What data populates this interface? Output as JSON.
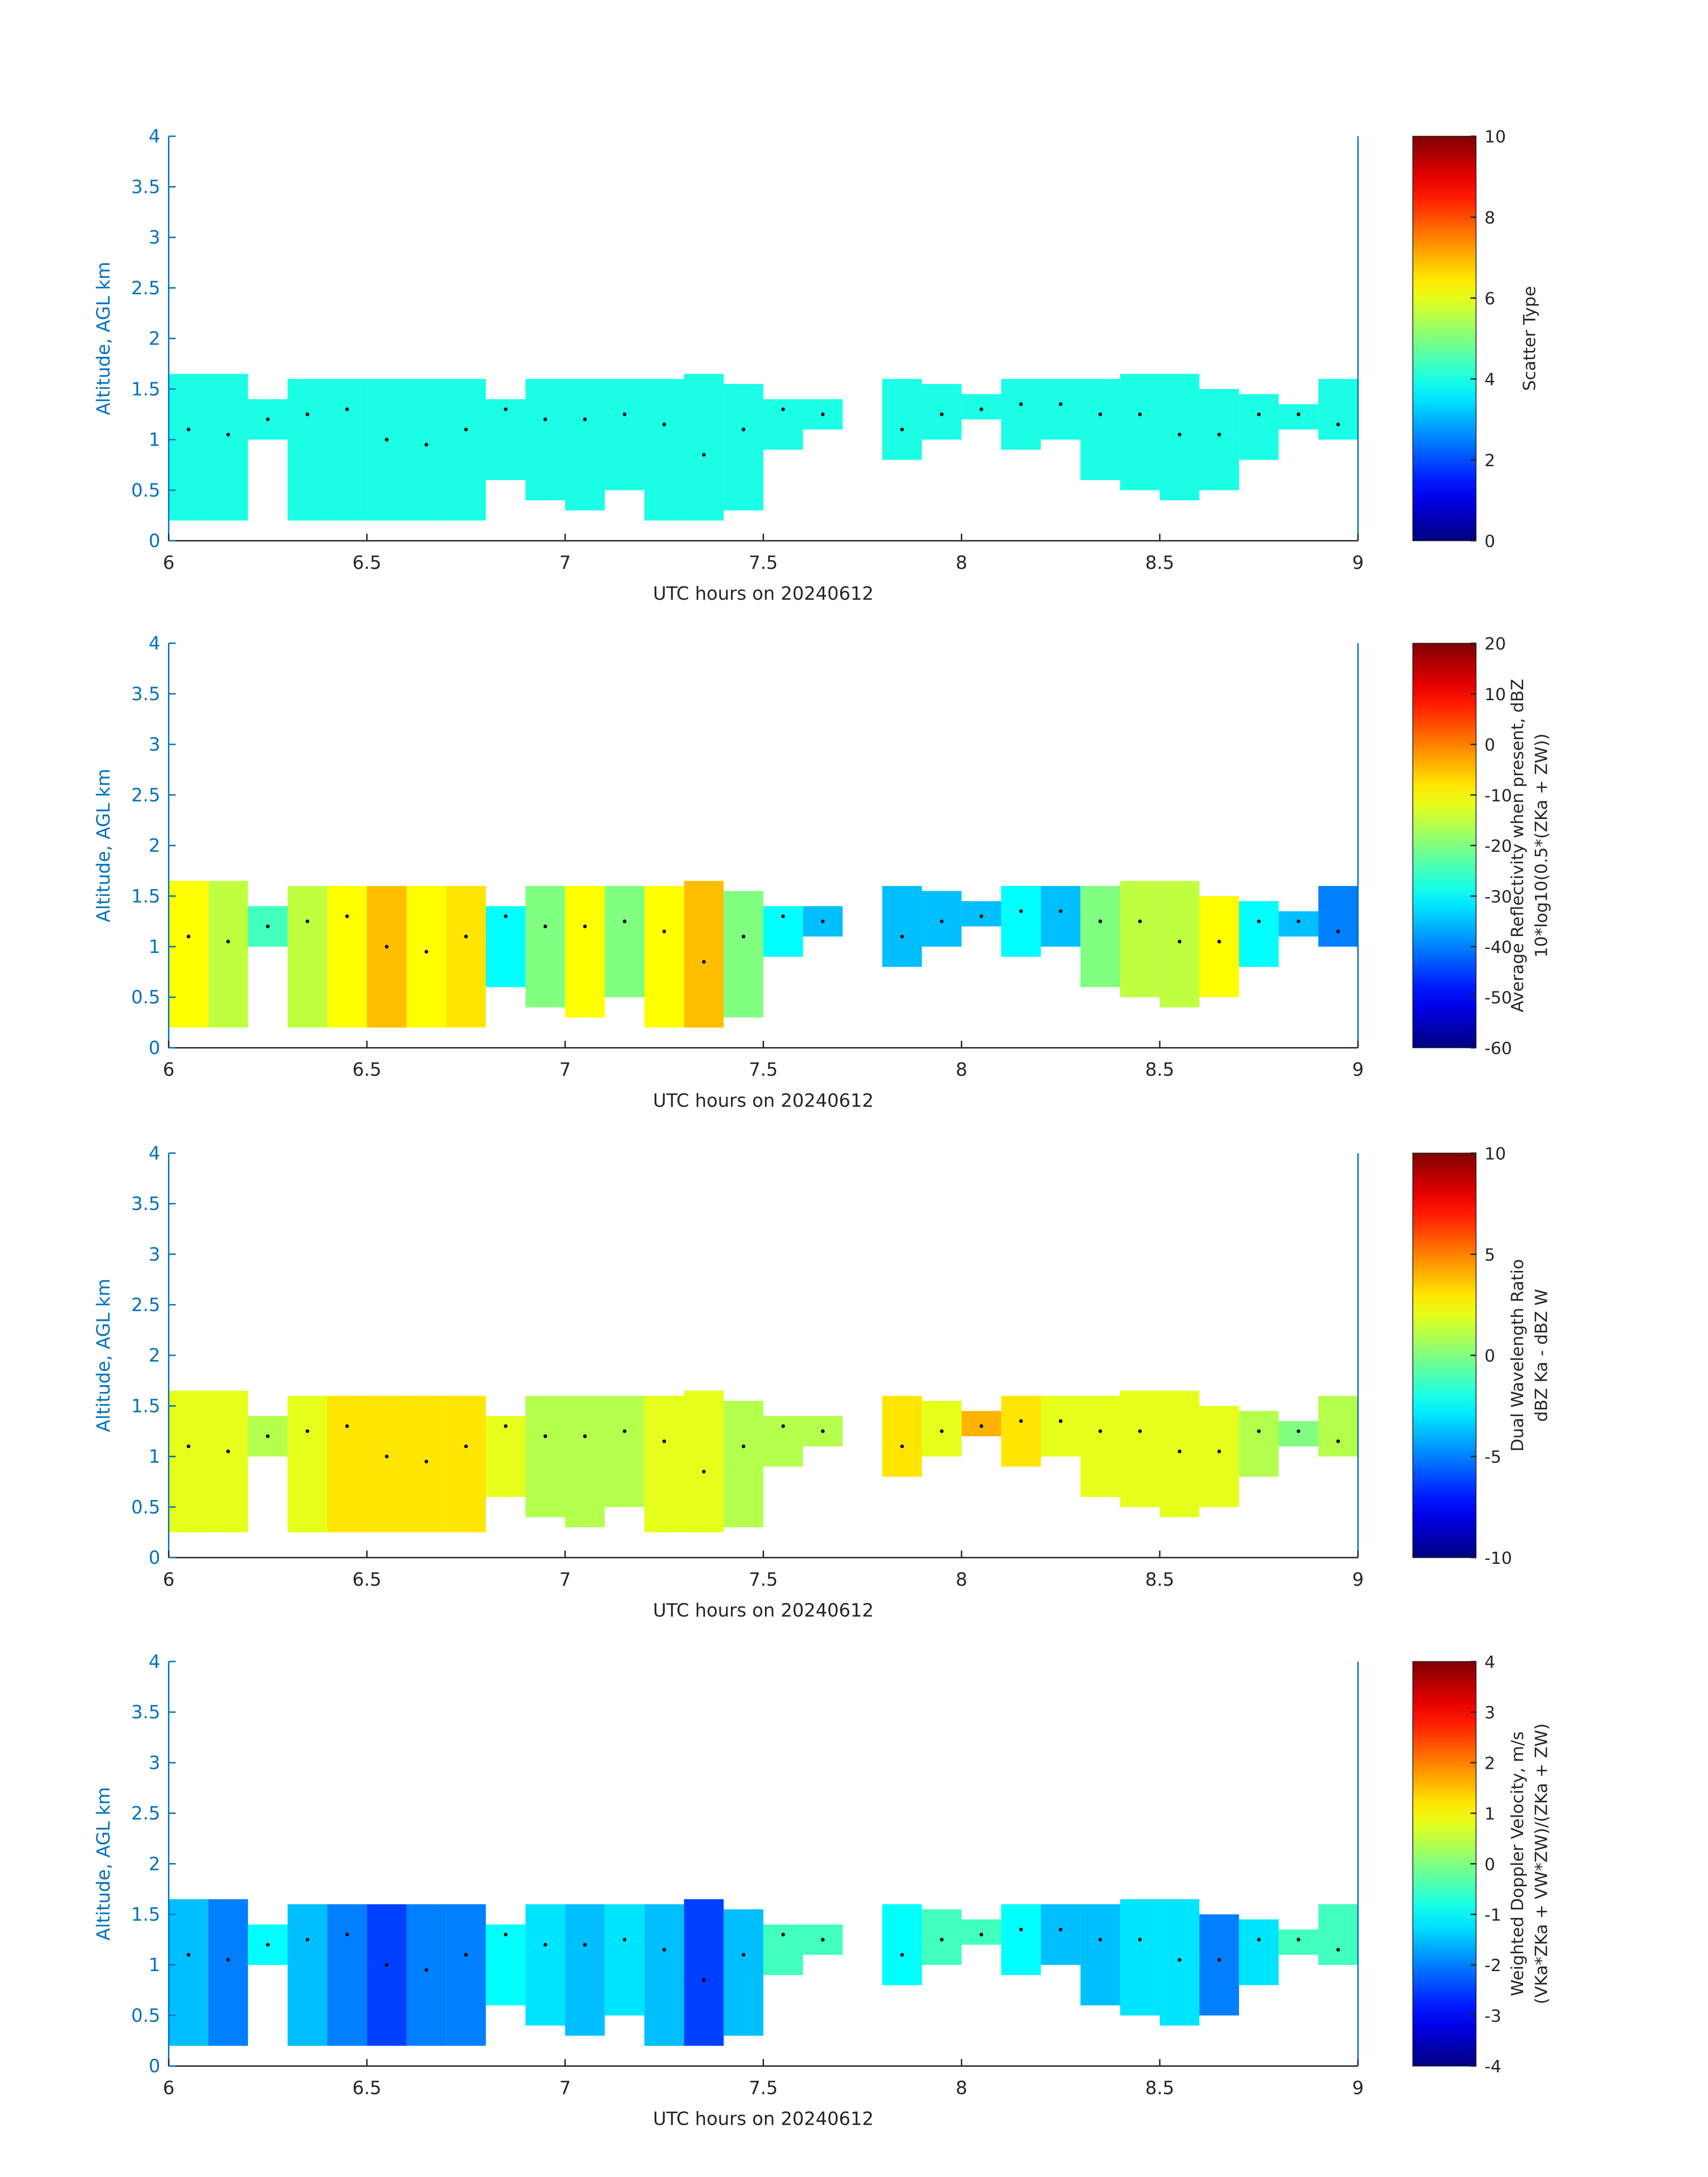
{
  "chart_data": [
    {
      "type": "heatmap",
      "xlabel": "UTC hours on 20240612",
      "ylabel": "Altitude, AGL km",
      "xlim": [
        6,
        9
      ],
      "xticks": [
        6,
        6.5,
        7,
        7.5,
        8,
        8.5,
        9
      ],
      "ylim": [
        0,
        4
      ],
      "yticks": [
        0,
        0.5,
        1,
        1.5,
        2,
        2.5,
        3,
        3.5,
        4
      ],
      "x": [
        6.05,
        6.15,
        6.25,
        6.35,
        6.45,
        6.55,
        6.65,
        6.75,
        6.85,
        6.95,
        7.05,
        7.15,
        7.25,
        7.35,
        7.45,
        7.55,
        7.65,
        7.75,
        7.85,
        7.95,
        8.05,
        8.15,
        8.25,
        8.35,
        8.45,
        8.55,
        8.65,
        8.75,
        8.85,
        8.95
      ],
      "top": [
        1.65,
        1.65,
        1.4,
        1.6,
        1.6,
        1.6,
        1.6,
        1.6,
        1.4,
        1.6,
        1.6,
        1.6,
        1.6,
        1.65,
        1.55,
        1.4,
        1.4,
        null,
        1.6,
        1.55,
        1.45,
        1.6,
        1.6,
        1.6,
        1.65,
        1.65,
        1.5,
        1.45,
        1.35,
        1.6
      ],
      "base": [
        0.2,
        0.2,
        1.0,
        0.2,
        0.2,
        0.2,
        0.2,
        0.2,
        0.6,
        0.4,
        0.3,
        0.5,
        0.2,
        0.2,
        0.3,
        0.9,
        1.1,
        null,
        0.8,
        1.0,
        1.2,
        0.9,
        1.0,
        0.6,
        0.5,
        0.4,
        0.5,
        0.8,
        1.1,
        1.0
      ],
      "values": [
        4,
        4,
        4,
        4,
        4,
        4,
        4,
        4,
        4,
        4,
        4,
        4,
        4,
        4,
        4,
        4,
        4,
        null,
        4,
        4,
        4,
        4,
        4,
        4,
        4,
        4,
        4,
        4,
        4,
        4
      ],
      "dots": [
        1.1,
        1.05,
        1.2,
        1.25,
        1.3,
        1.0,
        0.95,
        1.1,
        1.3,
        1.2,
        1.2,
        1.25,
        1.15,
        0.85,
        1.1,
        1.3,
        1.25,
        null,
        1.1,
        1.25,
        1.3,
        1.35,
        1.35,
        1.25,
        1.25,
        1.05,
        1.05,
        1.25,
        1.25,
        1.15
      ],
      "colorbar": {
        "label": [
          "Scatter Type"
        ],
        "clim": [
          0,
          10
        ],
        "ticks": [
          0,
          2,
          4,
          6,
          8,
          10
        ]
      }
    },
    {
      "type": "heatmap",
      "xlabel": "UTC hours on 20240612",
      "ylabel": "Altitude, AGL km",
      "xlim": [
        6,
        9
      ],
      "xticks": [
        6,
        6.5,
        7,
        7.5,
        8,
        8.5,
        9
      ],
      "ylim": [
        0,
        4
      ],
      "yticks": [
        0,
        0.5,
        1,
        1.5,
        2,
        2.5,
        3,
        3.5,
        4
      ],
      "x": [
        6.05,
        6.15,
        6.25,
        6.35,
        6.45,
        6.55,
        6.65,
        6.75,
        6.85,
        6.95,
        7.05,
        7.15,
        7.25,
        7.35,
        7.45,
        7.55,
        7.65,
        7.75,
        7.85,
        7.95,
        8.05,
        8.15,
        8.25,
        8.35,
        8.45,
        8.55,
        8.65,
        8.75,
        8.85,
        8.95
      ],
      "top": [
        1.65,
        1.65,
        1.4,
        1.6,
        1.6,
        1.6,
        1.6,
        1.6,
        1.4,
        1.6,
        1.6,
        1.6,
        1.6,
        1.65,
        1.55,
        1.4,
        1.4,
        null,
        1.6,
        1.55,
        1.45,
        1.6,
        1.6,
        1.6,
        1.65,
        1.65,
        1.5,
        1.45,
        1.35,
        1.6
      ],
      "base": [
        0.2,
        0.2,
        1.0,
        0.2,
        0.2,
        0.2,
        0.2,
        0.2,
        0.6,
        0.4,
        0.3,
        0.5,
        0.2,
        0.2,
        0.3,
        0.9,
        1.1,
        null,
        0.8,
        1.0,
        1.2,
        0.9,
        1.0,
        0.6,
        0.5,
        0.4,
        0.5,
        0.8,
        1.1,
        1.0
      ],
      "values": [
        -10,
        -15,
        -25,
        -15,
        -10,
        -5,
        -10,
        -8,
        -30,
        -20,
        -10,
        -20,
        -10,
        -5,
        -20,
        -30,
        -35,
        null,
        -35,
        -35,
        -35,
        -30,
        -35,
        -20,
        -15,
        -15,
        -10,
        -30,
        -35,
        -40
      ],
      "dots": [
        1.1,
        1.05,
        1.2,
        1.25,
        1.3,
        1.0,
        0.95,
        1.1,
        1.3,
        1.2,
        1.2,
        1.25,
        1.15,
        0.85,
        1.1,
        1.3,
        1.25,
        null,
        1.1,
        1.25,
        1.3,
        1.35,
        1.35,
        1.25,
        1.25,
        1.05,
        1.05,
        1.25,
        1.25,
        1.15
      ],
      "colorbar": {
        "label": [
          "Average Reflectivity when present, dBZ",
          "10*log10(0.5*(ZKa + ZW))"
        ],
        "clim": [
          -60,
          20
        ],
        "ticks": [
          -60,
          -50,
          -40,
          -30,
          -20,
          -10,
          0,
          10,
          20
        ]
      }
    },
    {
      "type": "heatmap",
      "xlabel": "UTC hours on 20240612",
      "ylabel": "Altitude, AGL km",
      "xlim": [
        6,
        9
      ],
      "xticks": [
        6,
        6.5,
        7,
        7.5,
        8,
        8.5,
        9
      ],
      "ylim": [
        0,
        4
      ],
      "yticks": [
        0,
        0.5,
        1,
        1.5,
        2,
        2.5,
        3,
        3.5,
        4
      ],
      "x": [
        6.05,
        6.15,
        6.25,
        6.35,
        6.45,
        6.55,
        6.65,
        6.75,
        6.85,
        6.95,
        7.05,
        7.15,
        7.25,
        7.35,
        7.45,
        7.55,
        7.65,
        7.75,
        7.85,
        7.95,
        8.05,
        8.15,
        8.25,
        8.35,
        8.45,
        8.55,
        8.65,
        8.75,
        8.85,
        8.95
      ],
      "top": [
        1.65,
        1.65,
        1.4,
        1.6,
        1.6,
        1.6,
        1.6,
        1.6,
        1.4,
        1.6,
        1.6,
        1.6,
        1.6,
        1.65,
        1.55,
        1.4,
        1.4,
        null,
        1.6,
        1.55,
        1.45,
        1.6,
        1.6,
        1.6,
        1.65,
        1.65,
        1.5,
        1.45,
        1.35,
        1.6
      ],
      "base": [
        0.25,
        0.25,
        1.0,
        0.25,
        0.25,
        0.25,
        0.25,
        0.25,
        0.6,
        0.4,
        0.3,
        0.5,
        0.25,
        0.25,
        0.3,
        0.9,
        1.1,
        null,
        0.8,
        1.0,
        1.2,
        0.9,
        1.0,
        0.6,
        0.5,
        0.4,
        0.5,
        0.8,
        1.1,
        1.0
      ],
      "values": [
        2,
        2,
        1,
        2,
        3,
        3,
        3,
        3,
        2,
        1,
        1,
        1,
        2,
        2,
        1,
        1,
        1,
        null,
        3,
        2,
        4,
        3,
        2,
        2,
        2,
        2,
        2,
        1,
        0,
        1
      ],
      "dots": [
        1.1,
        1.05,
        1.2,
        1.25,
        1.3,
        1.0,
        0.95,
        1.1,
        1.3,
        1.2,
        1.2,
        1.25,
        1.15,
        0.85,
        1.1,
        1.3,
        1.25,
        null,
        1.1,
        1.25,
        1.3,
        1.35,
        1.35,
        1.25,
        1.25,
        1.05,
        1.05,
        1.25,
        1.25,
        1.15
      ],
      "colorbar": {
        "label": [
          "Dual Wavelength Ratio",
          "dBZ Ka - dBZ W"
        ],
        "clim": [
          -10,
          10
        ],
        "ticks": [
          -10,
          -5,
          0,
          5,
          10
        ]
      }
    },
    {
      "type": "heatmap",
      "xlabel": "UTC hours on 20240612",
      "ylabel": "Altitude, AGL km",
      "xlim": [
        6,
        9
      ],
      "xticks": [
        6,
        6.5,
        7,
        7.5,
        8,
        8.5,
        9
      ],
      "ylim": [
        0,
        4
      ],
      "yticks": [
        0,
        0.5,
        1,
        1.5,
        2,
        2.5,
        3,
        3.5,
        4
      ],
      "x": [
        6.05,
        6.15,
        6.25,
        6.35,
        6.45,
        6.55,
        6.65,
        6.75,
        6.85,
        6.95,
        7.05,
        7.15,
        7.25,
        7.35,
        7.45,
        7.55,
        7.65,
        7.75,
        7.85,
        7.95,
        8.05,
        8.15,
        8.25,
        8.35,
        8.45,
        8.55,
        8.65,
        8.75,
        8.85,
        8.95
      ],
      "top": [
        1.65,
        1.65,
        1.4,
        1.6,
        1.6,
        1.6,
        1.6,
        1.6,
        1.4,
        1.6,
        1.6,
        1.6,
        1.6,
        1.65,
        1.55,
        1.4,
        1.4,
        null,
        1.6,
        1.55,
        1.45,
        1.6,
        1.6,
        1.6,
        1.65,
        1.65,
        1.5,
        1.45,
        1.35,
        1.6
      ],
      "base": [
        0.2,
        0.2,
        1.0,
        0.2,
        0.2,
        0.2,
        0.2,
        0.2,
        0.6,
        0.4,
        0.3,
        0.5,
        0.2,
        0.2,
        0.3,
        0.9,
        1.1,
        null,
        0.8,
        1.0,
        1.2,
        0.9,
        1.0,
        0.6,
        0.5,
        0.4,
        0.5,
        0.8,
        1.1,
        1.0
      ],
      "values": [
        -1.5,
        -2,
        -1,
        -1.5,
        -2,
        -2.5,
        -2,
        -2,
        -1,
        -1.2,
        -1.5,
        -1.2,
        -1.5,
        -2.5,
        -1.5,
        -0.5,
        -0.5,
        null,
        -1,
        -0.5,
        -0.5,
        -1,
        -1.5,
        -1.5,
        -1.2,
        -1.2,
        -2,
        -1.2,
        -0.5,
        -0.5
      ],
      "dots": [
        1.1,
        1.05,
        1.2,
        1.25,
        1.3,
        1.0,
        0.95,
        1.1,
        1.3,
        1.2,
        1.2,
        1.25,
        1.15,
        0.85,
        1.1,
        1.3,
        1.25,
        null,
        1.1,
        1.25,
        1.3,
        1.35,
        1.35,
        1.25,
        1.25,
        1.05,
        1.05,
        1.25,
        1.25,
        1.15
      ],
      "colorbar": {
        "label": [
          "Weighted Doppler Velocity, m/s",
          "(VKa*ZKa + VW*ZW)/(ZKa + ZW)"
        ],
        "clim": [
          -4,
          4
        ],
        "ticks": [
          -4,
          -3,
          -2,
          -1,
          0,
          1,
          2,
          3,
          4
        ]
      }
    }
  ]
}
